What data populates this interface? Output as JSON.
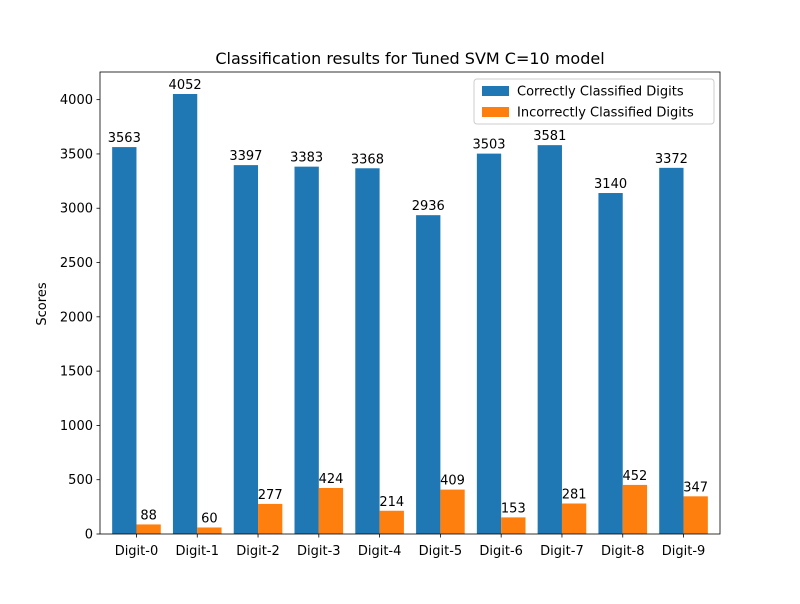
{
  "chart_data": {
    "type": "bar",
    "title": "Classification results for Tuned SVM C=10 model",
    "xlabel": "",
    "ylabel": "Scores",
    "categories": [
      "Digit-0",
      "Digit-1",
      "Digit-2",
      "Digit-3",
      "Digit-4",
      "Digit-5",
      "Digit-6",
      "Digit-7",
      "Digit-8",
      "Digit-9"
    ],
    "series": [
      {
        "name": "Correctly Classified Digits",
        "color": "#1f77b4",
        "values": [
          3563,
          4052,
          3397,
          3383,
          3368,
          2936,
          3503,
          3581,
          3140,
          3372
        ]
      },
      {
        "name": "Incorrectly Classified Digits",
        "color": "#ff7f0e",
        "values": [
          88,
          60,
          277,
          424,
          214,
          409,
          153,
          281,
          452,
          347
        ]
      }
    ],
    "yticks": [
      0,
      500,
      1000,
      1500,
      2000,
      2500,
      3000,
      3500,
      4000
    ],
    "ylim": [
      0,
      4254.6
    ],
    "grid": false,
    "legend_position": "top-right",
    "data_labels": true
  }
}
